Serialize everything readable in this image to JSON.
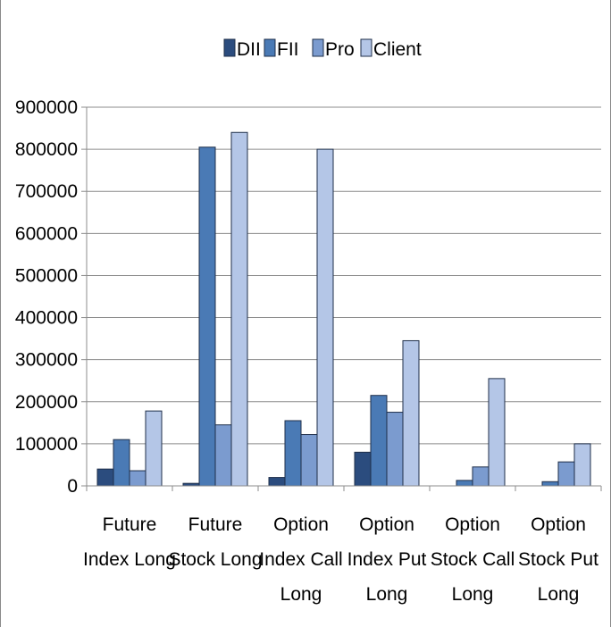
{
  "chart_data": {
    "type": "bar",
    "categories": [
      [
        "Future",
        "Index Long"
      ],
      [
        "Future",
        "Stock Long"
      ],
      [
        "Option",
        "Index Call",
        "Long"
      ],
      [
        "Option",
        "Index Put",
        "Long"
      ],
      [
        "Option",
        "Stock Call",
        "Long"
      ],
      [
        "Option",
        "Stock Put",
        "Long"
      ]
    ],
    "series": [
      {
        "name": "DII",
        "color": "#2b4c7e",
        "values": [
          40000,
          6000,
          20000,
          80000,
          0,
          0
        ]
      },
      {
        "name": "FII",
        "color": "#4a7ab5",
        "values": [
          110000,
          805000,
          155000,
          215000,
          13000,
          10000
        ]
      },
      {
        "name": "Pro",
        "color": "#7b9bcf",
        "values": [
          36000,
          145000,
          122000,
          175000,
          45000,
          57000
        ]
      },
      {
        "name": "Client",
        "color": "#b4c6e7",
        "values": [
          178000,
          840000,
          800000,
          345000,
          255000,
          100000
        ]
      }
    ],
    "ylim": [
      0,
      900000
    ],
    "yticks": [
      "0",
      "100000",
      "200000",
      "300000",
      "400000",
      "500000",
      "600000",
      "700000",
      "800000",
      "900000"
    ],
    "grid": true,
    "legend_position": "top",
    "title": "",
    "xlabel": "",
    "ylabel": ""
  }
}
